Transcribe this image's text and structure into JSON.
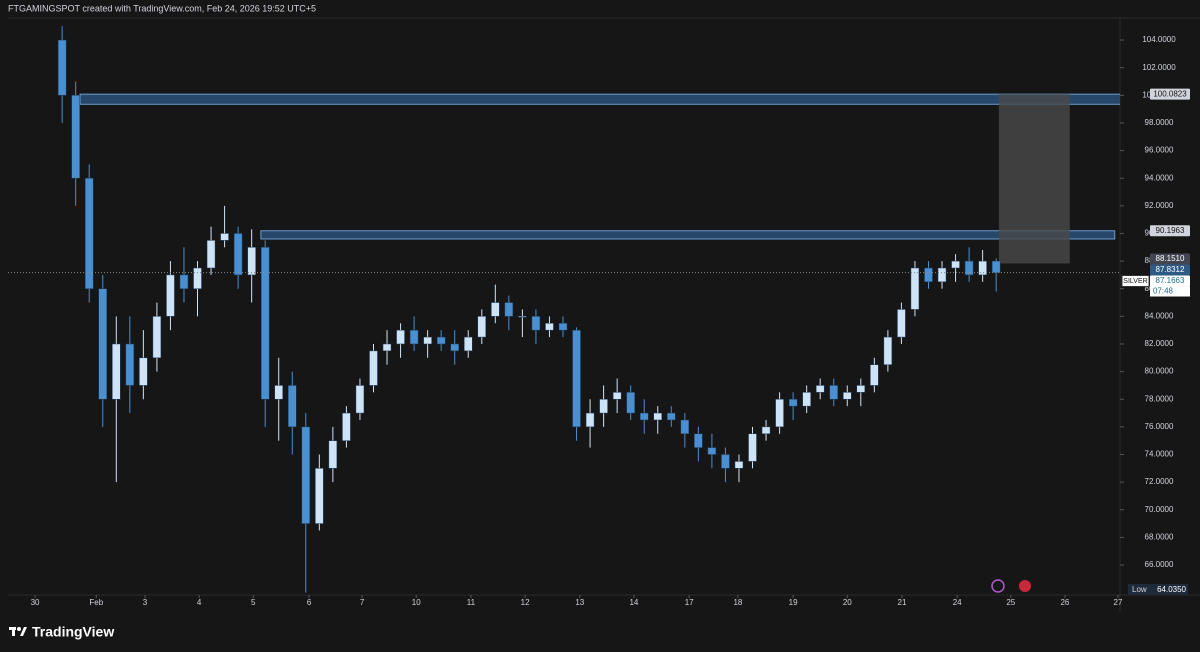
{
  "chart_data": {
    "type": "candlestick",
    "header": "FTGAMINGSPOT created with TradingView.com, Feb 24, 2026 19:52 UTC+5",
    "brand": "TradingView",
    "symbol": "SILVER",
    "countdown": "07:48",
    "up_color": "#cfe3f7",
    "down_color": "#4a8fd0",
    "x": [
      0.5,
      0.75,
      1,
      1.25,
      1.5,
      1.75,
      2,
      2.25,
      2.5,
      2.75,
      3,
      3.25,
      3.5,
      3.75,
      4,
      4.25,
      4.5,
      4.75,
      5,
      5.25,
      5.5,
      5.75,
      6,
      6.25,
      6.5,
      6.75,
      7,
      7.25,
      7.5,
      7.75,
      8,
      8.25,
      8.5,
      8.75,
      9,
      9.25,
      9.5,
      9.75,
      10,
      10.25,
      10.5,
      10.75,
      11,
      11.25,
      11.5,
      11.75,
      12,
      12.25,
      12.5,
      12.75,
      13,
      13.25,
      13.5,
      13.75,
      14,
      14.25,
      14.5,
      14.75,
      15,
      15.25,
      15.5,
      15.75,
      16,
      16.25,
      16.5,
      16.75,
      17,
      17.25,
      17.5,
      17.75
    ],
    "open": [
      104,
      100,
      94,
      86,
      78,
      82,
      79,
      81,
      84,
      87,
      86,
      87.5,
      89.5,
      90,
      87,
      89,
      78,
      79,
      76,
      69,
      73,
      75,
      77,
      79,
      81.5,
      82,
      83,
      82,
      82.5,
      82,
      81.5,
      82.5,
      84,
      85,
      84,
      84,
      83,
      83.5,
      83,
      76,
      77,
      78,
      78.5,
      77,
      76.5,
      77,
      76.5,
      75.5,
      74.5,
      74,
      73,
      73.5,
      75.5,
      76,
      78,
      77.5,
      78.5,
      79,
      78,
      78.5,
      79,
      80.5,
      82.5,
      84.5,
      87.5,
      86.5,
      87.5,
      88,
      87,
      88
    ],
    "high": [
      105,
      101,
      95,
      87,
      84,
      84,
      83,
      85,
      88,
      89,
      88,
      90.5,
      92,
      90.5,
      90.3,
      89.5,
      81,
      80,
      77,
      74,
      76,
      77.5,
      79.5,
      82,
      83,
      83.5,
      84,
      83,
      83,
      83,
      83,
      84.5,
      86.3,
      85.5,
      84.5,
      84.5,
      84,
      84,
      83.2,
      78,
      79,
      79.5,
      79,
      78,
      77.5,
      77.5,
      77,
      76,
      75.5,
      74.5,
      74,
      76,
      76.5,
      78.5,
      78.5,
      79,
      79.5,
      79.5,
      79,
      79.5,
      81,
      83,
      85,
      88,
      88,
      88,
      88.5,
      89,
      88.8,
      88.2
    ],
    "low": [
      98,
      92,
      85,
      76,
      72,
      77,
      78,
      80,
      83,
      85,
      84,
      87,
      89,
      86,
      85,
      76,
      75,
      74,
      64,
      68.5,
      72,
      74.5,
      76.5,
      78.5,
      80.5,
      81,
      81.5,
      81,
      81.5,
      80.5,
      81,
      82,
      83.5,
      83,
      82.5,
      82,
      82.5,
      82.5,
      75,
      74.5,
      76,
      77,
      76.5,
      75.5,
      75.5,
      76,
      74.5,
      73.5,
      73,
      72,
      72,
      73,
      75,
      75.5,
      76.5,
      77,
      78,
      77.5,
      77.5,
      77.5,
      78.5,
      80,
      82,
      84,
      86,
      86,
      86.5,
      86.5,
      86.5,
      85.8
    ],
    "close": [
      100,
      94,
      86,
      78,
      82,
      79,
      81,
      84,
      87,
      86,
      87.5,
      89.5,
      90,
      87,
      89,
      78,
      79,
      76,
      69,
      73,
      75,
      77,
      79,
      81.5,
      82,
      83,
      82,
      82.5,
      82,
      81.5,
      82.5,
      84,
      85,
      84,
      84,
      83,
      83.5,
      83,
      76,
      77,
      78,
      78.5,
      77,
      76.5,
      77,
      76.5,
      75.5,
      74.5,
      74,
      73,
      73.5,
      75.5,
      76,
      78,
      77.5,
      78.5,
      79,
      78,
      78.5,
      79,
      80.5,
      82.5,
      84.5,
      87.5,
      86.5,
      87.5,
      88,
      87,
      88,
      87.1663
    ],
    "xlim": [
      -0.5,
      20
    ],
    "xticks": [
      {
        "value": 0,
        "label": "30"
      },
      {
        "value": 1.13,
        "label": "Feb"
      },
      {
        "value": 2.03,
        "label": "3"
      },
      {
        "value": 3.03,
        "label": "4"
      },
      {
        "value": 4.03,
        "label": "5"
      },
      {
        "value": 5.06,
        "label": "6"
      },
      {
        "value": 6.04,
        "label": "7"
      },
      {
        "value": 7.04,
        "label": "10"
      },
      {
        "value": 8.05,
        "label": "11"
      },
      {
        "value": 9.05,
        "label": "12"
      },
      {
        "value": 10.06,
        "label": "13"
      },
      {
        "value": 11.06,
        "label": "14"
      },
      {
        "value": 12.08,
        "label": "17"
      },
      {
        "value": 12.98,
        "label": "18"
      },
      {
        "value": 14,
        "label": "19"
      },
      {
        "value": 15,
        "label": "20"
      },
      {
        "value": 16.01,
        "label": "21"
      },
      {
        "value": 17.03,
        "label": "24"
      },
      {
        "value": 18.02,
        "label": "25"
      },
      {
        "value": 19.02,
        "label": "26"
      },
      {
        "value": 20,
        "label": "27"
      }
    ],
    "ylim": [
      63.83,
      106.32
    ],
    "yticks": [
      {
        "value": 66,
        "label": "66.0000"
      },
      {
        "value": 68,
        "label": "68.0000"
      },
      {
        "value": 70,
        "label": "70.0000"
      },
      {
        "value": 72,
        "label": "72.0000"
      },
      {
        "value": 74,
        "label": "74.0000"
      },
      {
        "value": 76,
        "label": "76.0000"
      },
      {
        "value": 78,
        "label": "78.0000"
      },
      {
        "value": 80,
        "label": "80.0000"
      },
      {
        "value": 82,
        "label": "82.0000"
      },
      {
        "value": 84,
        "label": "84.0000"
      },
      {
        "value": 86,
        "label": "86.0000"
      },
      {
        "value": 88,
        "label": "88.0000"
      },
      {
        "value": 90,
        "label": "90.0000"
      },
      {
        "value": 92,
        "label": "92.0000"
      },
      {
        "value": 94,
        "label": "94.0000"
      },
      {
        "value": 96,
        "label": "96.0000"
      },
      {
        "value": 98,
        "label": "98.0000"
      },
      {
        "value": 100,
        "label": "100.0000"
      },
      {
        "value": 102,
        "label": "102.0000"
      },
      {
        "value": 104,
        "label": "104.0000"
      }
    ],
    "zones": [
      {
        "top": 100.0823,
        "bottom": 99.35,
        "x": [
          0.83,
          20.6
        ],
        "color": "#2e5a86"
      },
      {
        "top": 90.1963,
        "bottom": 89.6,
        "x": [
          4.17,
          19.94
        ],
        "color": "#2e5a86"
      }
    ],
    "box": {
      "top": 100.0823,
      "bottom": 87.8312,
      "x": [
        17.8,
        19.11
      ],
      "color": "#4a4a4a"
    },
    "price_labels": [
      {
        "value": 100.0823,
        "bg": "#d1d4dc",
        "fg": "#131313"
      },
      {
        "value": 90.1963,
        "bg": "#d1d4dc",
        "fg": "#131313"
      },
      {
        "value": 88.151,
        "label": "88.1510",
        "bg": "#434651",
        "fg": "#ffffff"
      },
      {
        "value": 87.8312,
        "bg": "#2e5a86",
        "fg": "#ffffff"
      },
      {
        "value": 87.1663,
        "bg": "#ffffff",
        "fg": "#1f6f8b"
      }
    ],
    "low_marker": {
      "label": "Low",
      "value": 64.035,
      "value_label": "64.0350"
    }
  }
}
